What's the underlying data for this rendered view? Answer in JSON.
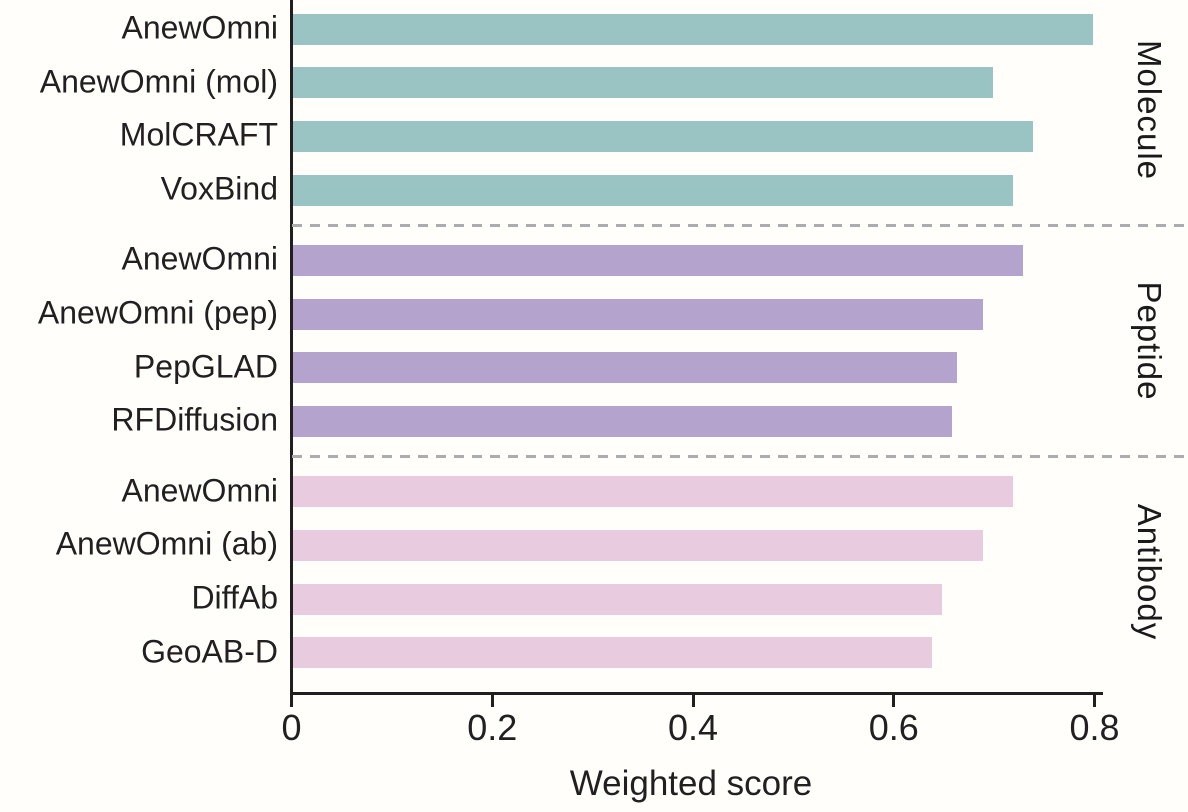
{
  "figure": {
    "background": "#fffefa"
  },
  "chart_data": {
    "type": "bar",
    "orientation": "horizontal",
    "title": "",
    "xlabel": "Weighted score",
    "ylabel": "",
    "xlim": [
      0,
      0.8
    ],
    "xticks": [
      0,
      0.2,
      0.4,
      0.6,
      0.8
    ],
    "xtick_labels": [
      "0",
      "0.2",
      "0.4",
      "0.6",
      "0.8"
    ],
    "grid": false,
    "legend": false,
    "axis_color": "#221E1F",
    "text_color": "#231F20",
    "separator_style": "dashed",
    "separator_color": "#ACACAC",
    "groups": [
      {
        "name": "Molecule",
        "color": "#9AC3C3",
        "bars": [
          {
            "label": "AnewOmni",
            "value": 0.8
          },
          {
            "label": "AnewOmni (mol)",
            "value": 0.7
          },
          {
            "label": "MolCRAFT",
            "value": 0.74
          },
          {
            "label": "VoxBind",
            "value": 0.72
          }
        ]
      },
      {
        "name": "Peptide",
        "color": "#B3A3CD",
        "bars": [
          {
            "label": "AnewOmni",
            "value": 0.73
          },
          {
            "label": "AnewOmni (pep)",
            "value": 0.69
          },
          {
            "label": "PepGLAD",
            "value": 0.665
          },
          {
            "label": "RFDiffusion",
            "value": 0.66
          }
        ]
      },
      {
        "name": "Antibody",
        "color": "#E8CBDE",
        "bars": [
          {
            "label": "AnewOmni",
            "value": 0.72
          },
          {
            "label": "AnewOmni (ab)",
            "value": 0.69
          },
          {
            "label": "DiffAb",
            "value": 0.65
          },
          {
            "label": "GeoAB-D",
            "value": 0.64
          }
        ]
      }
    ]
  }
}
